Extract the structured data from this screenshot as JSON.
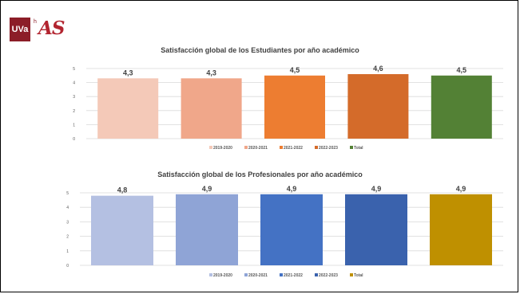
{
  "logo": {
    "box_text": "UVa",
    "sup_text": "h",
    "main_text": "AS",
    "colors": {
      "box": "#8c1d28",
      "text": "#b2242f"
    }
  },
  "chart_data": [
    {
      "type": "bar",
      "title": "Satisfacción global de los Estudiantes por año académico",
      "categories": [
        "2019-2020",
        "2020-2021",
        "2021-2022",
        "2022-2023",
        "Total"
      ],
      "values": [
        4.3,
        4.3,
        4.5,
        4.6,
        4.5
      ],
      "value_labels": [
        "4,3",
        "4,3",
        "4,5",
        "4,6",
        "4,5"
      ],
      "colors": [
        "#f4c9b8",
        "#f0a78a",
        "#ed7d31",
        "#d46b2a",
        "#538135"
      ],
      "ylim": [
        0,
        5
      ],
      "yticks": [
        "0",
        "1",
        "2",
        "3",
        "4",
        "5"
      ],
      "grid": true,
      "legend": "bottom"
    },
    {
      "type": "bar",
      "title": "Satisfacción global de los Profesionales por año académico",
      "categories": [
        "2019-2020",
        "2020-2021",
        "2021-2022",
        "2022-2023",
        "Total"
      ],
      "values": [
        4.8,
        4.9,
        4.9,
        4.9,
        4.9
      ],
      "value_labels": [
        "4,8",
        "4,9",
        "4,9",
        "4,9",
        "4,9"
      ],
      "colors": [
        "#b4c0e2",
        "#8fa4d6",
        "#4472c4",
        "#3a62ad",
        "#bf9000"
      ],
      "ylim": [
        0,
        5
      ],
      "yticks": [
        "0",
        "1",
        "2",
        "3",
        "4",
        "5"
      ],
      "grid": true,
      "legend": "bottom"
    }
  ]
}
